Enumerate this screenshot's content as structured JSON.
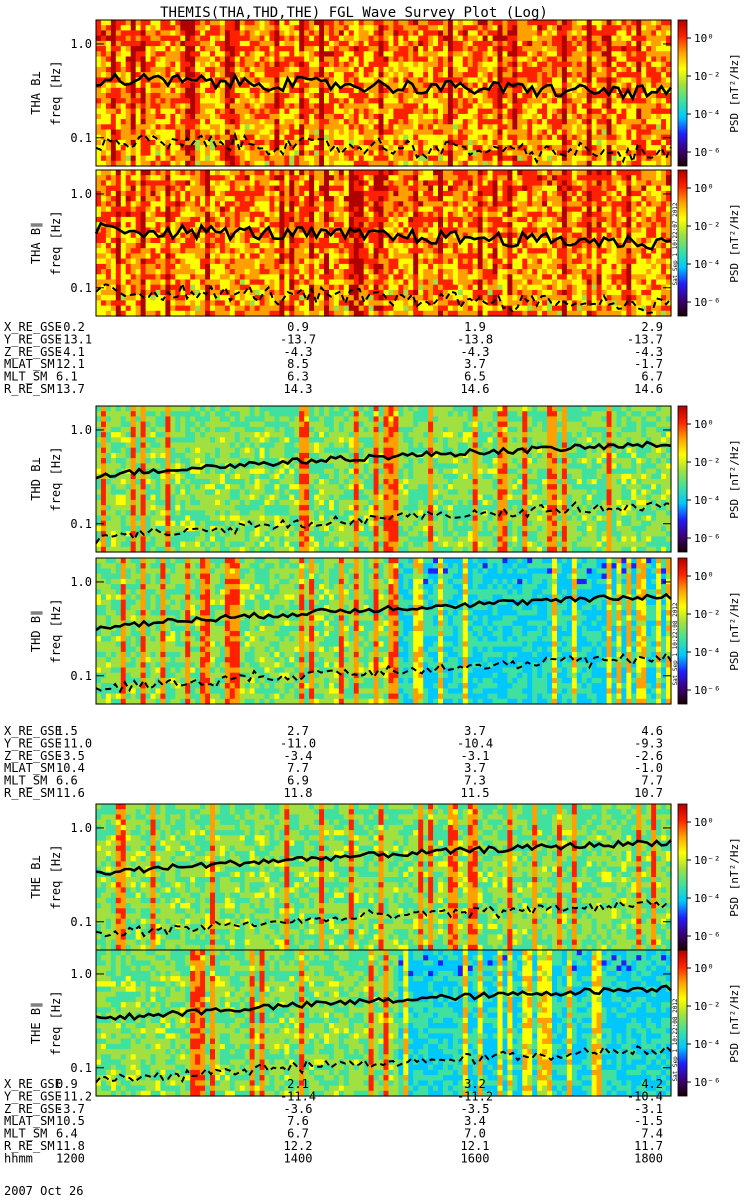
{
  "title": "THEMIS(THA,THD,THE) FGL Wave Survey Plot (Log)",
  "colorbar": {
    "label": "PSD [nT²/Hz]",
    "ticks": [
      "10⁰",
      "10⁻²",
      "10⁻⁴",
      "10⁻⁶"
    ],
    "stops": [
      "#1a0000",
      "#3c007a",
      "#2020ff",
      "#00c8ff",
      "#40e0a0",
      "#a0e040",
      "#ffff00",
      "#ffa000",
      "#ff2000",
      "#b00000"
    ]
  },
  "date_label": "2007 Oct 26",
  "stamps": [
    "Sat Sep 1 10:22:07 2012",
    "Sat Sep 1 10:22:08 2012",
    "Sat Sep 1 10:22:08 2012"
  ],
  "chart_data": [
    {
      "type": "heatmap",
      "probe": "THA",
      "panels": [
        {
          "ylabel": "THA B⊥",
          "units": "freq [Hz]",
          "intensity": "high"
        },
        {
          "ylabel": "THA B∥",
          "units": "freq [Hz]",
          "intensity": "high"
        }
      ],
      "yticks": [
        "1.0",
        "0.1"
      ],
      "ylim": [
        0.05,
        1.8
      ],
      "yscale": "log",
      "ephemeris": {
        "labels": [
          "X_RE_GSE",
          "Y_RE_GSE",
          "Z_RE_GSE",
          "MLAT_SM",
          "MLT_SM",
          "R_RE_SM"
        ],
        "columns": [
          [
            "-0.2",
            "-13.1",
            "-4.1",
            "12.1",
            "6.1",
            "13.7"
          ],
          [
            "0.9",
            "-13.7",
            "-4.3",
            "8.5",
            "6.3",
            "14.3"
          ],
          [
            "1.9",
            "-13.8",
            "-4.3",
            "3.7",
            "6.5",
            "14.6"
          ],
          [
            "2.9",
            "-13.7",
            "-4.3",
            "-1.7",
            "6.7",
            "14.6"
          ]
        ]
      }
    },
    {
      "type": "heatmap",
      "probe": "THD",
      "panels": [
        {
          "ylabel": "THD B⊥",
          "units": "freq [Hz]",
          "intensity": "low"
        },
        {
          "ylabel": "THD B∥",
          "units": "freq [Hz]",
          "intensity": "low"
        }
      ],
      "yticks": [
        "1.0",
        "0.1"
      ],
      "ylim": [
        0.05,
        1.8
      ],
      "yscale": "log",
      "ephemeris": {
        "labels": [
          "X_RE_GSE",
          "Y_RE_GSE",
          "Z_RE_GSE",
          "MLAT_SM",
          "MLT_SM",
          "R_RE_SM"
        ],
        "columns": [
          [
            "1.5",
            "-11.0",
            "-3.5",
            "10.4",
            "6.6",
            "11.6"
          ],
          [
            "2.7",
            "-11.0",
            "-3.4",
            "7.7",
            "6.9",
            "11.8"
          ],
          [
            "3.7",
            "-10.4",
            "-3.1",
            "3.7",
            "7.3",
            "11.5"
          ],
          [
            "4.6",
            "-9.3",
            "-2.6",
            "-1.0",
            "7.7",
            "10.7"
          ]
        ]
      }
    },
    {
      "type": "heatmap",
      "probe": "THE",
      "panels": [
        {
          "ylabel": "THE B⊥",
          "units": "freq [Hz]",
          "intensity": "low"
        },
        {
          "ylabel": "THE B∥",
          "units": "freq [Hz]",
          "intensity": "low"
        }
      ],
      "yticks": [
        "1.0",
        "0.1"
      ],
      "ylim": [
        0.05,
        1.8
      ],
      "yscale": "log",
      "ephemeris": {
        "labels": [
          "X_RE_GSE",
          "Y_RE_GSE",
          "Z_RE_GSE",
          "MLAT_SM",
          "MLT_SM",
          "R_RE_SM",
          "hhmm"
        ],
        "columns": [
          [
            "0.9",
            "-11.2",
            "-3.7",
            "10.5",
            "6.4",
            "11.8",
            "1200"
          ],
          [
            "2.1",
            "-11.4",
            "-3.6",
            "7.6",
            "6.7",
            "12.2",
            "1400"
          ],
          [
            "3.2",
            "-11.2",
            "-3.5",
            "3.4",
            "7.0",
            "12.1",
            "1600"
          ],
          [
            "4.2",
            "-10.4",
            "-3.1",
            "-1.5",
            "7.4",
            "11.7",
            "1800"
          ]
        ]
      }
    }
  ]
}
